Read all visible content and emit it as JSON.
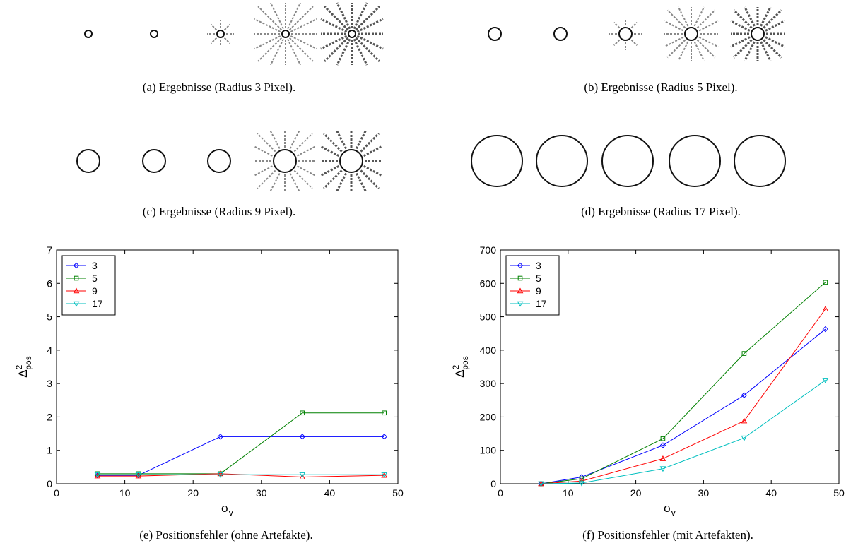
{
  "captions": [
    "(a) Ergebnisse (Radius 3 Pixel).",
    "(b) Ergebnisse (Radius 5 Pixel).",
    "(c) Ergebnisse (Radius 9 Pixel).",
    "(d) Ergebnisse (Radius 17 Pixel).",
    "(e) Positionsfehler (ohne Artefakte).",
    "(f) Positionsfehler (mit Artefakten)."
  ],
  "chart_data": [
    {
      "type": "line",
      "xlabel": {
        "symbol": "σ",
        "subscript": "v"
      },
      "ylabel": {
        "symbol": "Δ",
        "superscript": "2",
        "subscript": "pos"
      },
      "x": [
        6,
        12,
        24,
        36,
        48
      ],
      "xlim": [
        0,
        50
      ],
      "xticks": [
        0,
        10,
        20,
        30,
        40,
        50
      ],
      "ylim": [
        0,
        7
      ],
      "yticks": [
        0,
        1,
        2,
        3,
        4,
        5,
        6,
        7
      ],
      "legend": "upper left",
      "series": [
        {
          "name": "3",
          "color": "#0000ff",
          "marker": "diamond",
          "values": [
            0.25,
            0.25,
            1.41,
            1.41,
            1.41
          ]
        },
        {
          "name": "5",
          "color": "#008000",
          "marker": "square",
          "values": [
            0.3,
            0.3,
            0.3,
            2.12,
            2.12
          ]
        },
        {
          "name": "9",
          "color": "#ff0000",
          "marker": "triangle-up",
          "values": [
            0.23,
            0.23,
            0.3,
            0.2,
            0.25
          ]
        },
        {
          "name": "17",
          "color": "#00bfbf",
          "marker": "triangle-down",
          "values": [
            0.27,
            0.27,
            0.27,
            0.27,
            0.27
          ]
        }
      ]
    },
    {
      "type": "line",
      "xlabel": {
        "symbol": "σ",
        "subscript": "v"
      },
      "ylabel": {
        "symbol": "Δ",
        "superscript": "2",
        "subscript": "pos"
      },
      "x": [
        6,
        12,
        24,
        36,
        48
      ],
      "xlim": [
        0,
        50
      ],
      "xticks": [
        0,
        10,
        20,
        30,
        40,
        50
      ],
      "ylim": [
        0,
        700
      ],
      "yticks": [
        0,
        100,
        200,
        300,
        400,
        500,
        600,
        700
      ],
      "legend": "upper left",
      "series": [
        {
          "name": "3",
          "color": "#0000ff",
          "marker": "diamond",
          "values": [
            0,
            20,
            115,
            265,
            463
          ]
        },
        {
          "name": "5",
          "color": "#008000",
          "marker": "square",
          "values": [
            0,
            15,
            135,
            390,
            603
          ]
        },
        {
          "name": "9",
          "color": "#ff0000",
          "marker": "triangle-up",
          "values": [
            0,
            8,
            75,
            188,
            523
          ]
        },
        {
          "name": "17",
          "color": "#00bfbf",
          "marker": "triangle-down",
          "values": [
            0,
            2,
            45,
            137,
            310
          ]
        }
      ]
    }
  ]
}
